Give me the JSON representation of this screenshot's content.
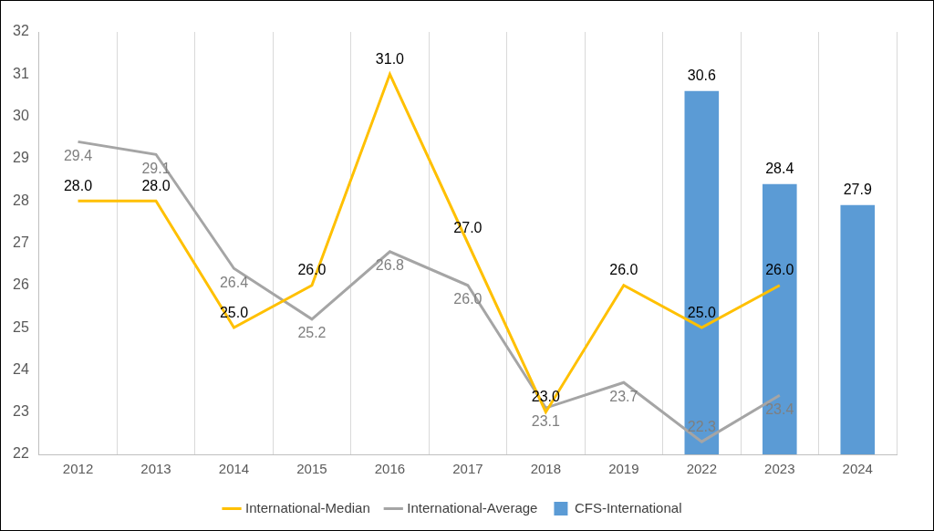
{
  "chart_data": {
    "type": "bar",
    "categories": [
      "2012",
      "2013",
      "2014",
      "2015",
      "2016",
      "2017",
      "2018",
      "2019",
      "2022",
      "2023",
      "2024"
    ],
    "series": [
      {
        "name": "CFS-International",
        "type": "bar",
        "color": "#5b9bd5",
        "values": [
          null,
          null,
          null,
          null,
          null,
          null,
          null,
          null,
          30.6,
          28.4,
          27.9
        ],
        "value_labels": [
          null,
          null,
          null,
          null,
          null,
          null,
          null,
          null,
          "30.6",
          "28.4",
          "27.9"
        ]
      },
      {
        "name": "International-Median",
        "type": "line",
        "color": "#ffc000",
        "values": [
          28,
          28,
          25,
          26,
          31,
          27,
          23,
          26,
          25,
          26,
          null
        ],
        "value_labels": [
          "28.0",
          "28.0",
          "25.0",
          "26.0",
          "31.0",
          "27.0",
          "23.0",
          "26.0",
          "25.0",
          "26.0",
          null
        ]
      },
      {
        "name": "International-Average",
        "type": "line",
        "color": "#a5a5a5",
        "values": [
          29.4,
          29.1,
          26.4,
          25.2,
          26.8,
          26.0,
          23.1,
          23.7,
          22.3,
          23.4,
          null
        ],
        "value_labels": [
          "29.4",
          "29.1",
          "26.4",
          "25.2",
          "26.8",
          "26.0",
          "23.1",
          "23.7",
          "22.3",
          "23.4",
          null
        ]
      }
    ],
    "ylim": [
      22,
      32
    ],
    "yticks": [
      22,
      23,
      24,
      25,
      26,
      27,
      28,
      29,
      30,
      31,
      32
    ],
    "grid": "x",
    "legend": "bottom",
    "data_labels": true
  }
}
